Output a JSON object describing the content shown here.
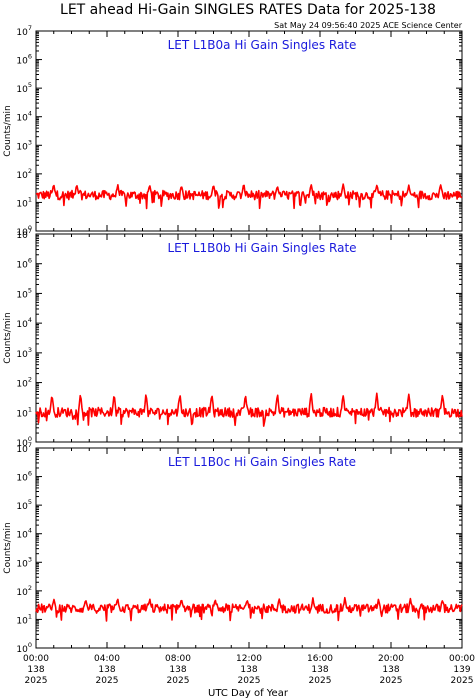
{
  "title": "LET ahead Hi-Gain SINGLES RATES Data for 2025-138",
  "timestamp": "Sat May 24 09:56:40 2025 ACE Science Center",
  "xlabel": "UTC Day of Year",
  "colors": {
    "series": "#ff0000",
    "panel_title": "#1a1adc",
    "axes": "#000000"
  },
  "chart_data": [
    {
      "type": "line",
      "title": "LET L1B0a Hi Gain Singles Rate",
      "ylabel": "Counts/min",
      "yscale": "log",
      "ylim": [
        1,
        10000000
      ],
      "ytick_exponents": [
        0,
        1,
        2,
        3,
        4,
        5,
        6,
        7
      ],
      "xlim": [
        0,
        24
      ],
      "series": [
        {
          "baseline": 18,
          "spike_peak": 45,
          "spike_hours": [
            1.0,
            2.3,
            4.6,
            6.4,
            8.2,
            10.0,
            11.7,
            13.6,
            15.5,
            17.3,
            19.2,
            21.0,
            22.8
          ]
        }
      ]
    },
    {
      "type": "line",
      "title": "LET L1B0b Hi Gain Singles Rate",
      "ylabel": "Counts/min",
      "yscale": "log",
      "ylim": [
        1,
        10000000
      ],
      "ytick_exponents": [
        0,
        1,
        2,
        3,
        4,
        5,
        6,
        7
      ],
      "xlim": [
        0,
        24
      ],
      "series": [
        {
          "baseline": 10,
          "spike_peak": 45,
          "spike_hours": [
            0.9,
            2.5,
            4.4,
            6.2,
            8.1,
            9.9,
            11.8,
            13.6,
            15.5,
            17.3,
            19.2,
            21.0,
            22.9
          ]
        }
      ]
    },
    {
      "type": "line",
      "title": "LET L1B0c Hi Gain Singles Rate",
      "ylabel": "Counts/min",
      "yscale": "log",
      "ylim": [
        1,
        10000000
      ],
      "ytick_exponents": [
        0,
        1,
        2,
        3,
        4,
        5,
        6,
        7
      ],
      "xlim": [
        0,
        24
      ],
      "series": [
        {
          "baseline": 24,
          "spike_peak": 55,
          "spike_hours": [
            1.0,
            2.8,
            4.6,
            6.4,
            8.2,
            10.1,
            11.9,
            13.7,
            15.6,
            17.4,
            19.3,
            21.1,
            22.9
          ]
        }
      ]
    }
  ],
  "x_ticks": [
    {
      "hour": 0,
      "time": "00:00",
      "doy": "138",
      "year": "2025"
    },
    {
      "hour": 4,
      "time": "04:00",
      "doy": "138",
      "year": "2025"
    },
    {
      "hour": 8,
      "time": "08:00",
      "doy": "138",
      "year": "2025"
    },
    {
      "hour": 12,
      "time": "12:00",
      "doy": "138",
      "year": "2025"
    },
    {
      "hour": 16,
      "time": "16:00",
      "doy": "138",
      "year": "2025"
    },
    {
      "hour": 20,
      "time": "20:00",
      "doy": "138",
      "year": "2025"
    },
    {
      "hour": 24,
      "time": "00:00",
      "doy": "139",
      "year": "2025"
    }
  ]
}
